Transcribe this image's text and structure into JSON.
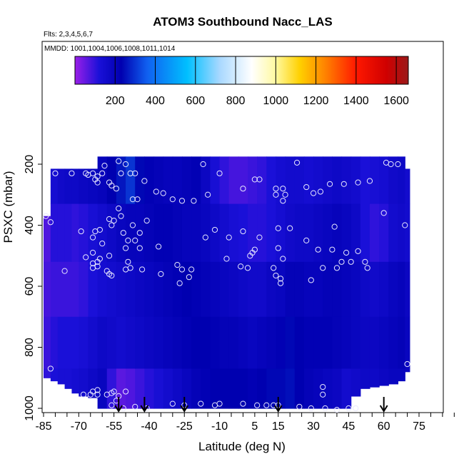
{
  "chart_data": {
    "type": "heatmap",
    "title": "ATOM3 Southbound Nacc_LAS",
    "subtitle_flights": "Flts: 2,3,4,5,6,7",
    "subtitle_dates": "MMDD: 1001,1004,1006,1008,1011,1014",
    "xlabel": "Latitude (deg N)",
    "ylabel": "PSXC (mbar)",
    "xlim": [
      -85,
      90
    ],
    "ylim": [
      1000,
      150
    ],
    "x_ticks": [
      -85,
      -70,
      -55,
      -40,
      -25,
      -10,
      5,
      15,
      30,
      45,
      60,
      75
    ],
    "x_tick_labels": [
      "-85",
      "-70",
      "-55",
      "-40",
      "-25",
      "-10",
      "5",
      "15",
      "30",
      "45",
      "60",
      "75"
    ],
    "y_ticks": [
      200,
      400,
      600,
      800,
      1000
    ],
    "y_tick_labels": [
      "200",
      "400",
      "600",
      "800",
      "1000"
    ],
    "colorbar": {
      "range": [
        0,
        1660
      ],
      "tick_values": [
        200,
        400,
        600,
        800,
        1000,
        1200,
        1400,
        1600
      ],
      "tick_labels": [
        "200",
        "400",
        "600",
        "800",
        "1000",
        "1200",
        "1400",
        "1600"
      ],
      "stops": [
        {
          "v": 0,
          "c": "#9a1fe8"
        },
        {
          "v": 120,
          "c": "#1a10d8"
        },
        {
          "v": 230,
          "c": "#0000b0"
        },
        {
          "v": 360,
          "c": "#1060f0"
        },
        {
          "v": 560,
          "c": "#00c0ff"
        },
        {
          "v": 720,
          "c": "#a8d8ff"
        },
        {
          "v": 880,
          "c": "#ffffff"
        },
        {
          "v": 1000,
          "c": "#fff9a0"
        },
        {
          "v": 1120,
          "c": "#ffd000"
        },
        {
          "v": 1250,
          "c": "#ff8000"
        },
        {
          "v": 1400,
          "c": "#ff1800"
        },
        {
          "v": 1550,
          "c": "#d00000"
        },
        {
          "v": 1660,
          "c": "#9a1a1a"
        }
      ]
    },
    "grid": false,
    "legend": "colorbar top",
    "field_colors": {
      "low": "#8a28ee",
      "mid": "#5a18e0",
      "high": "#2810c8",
      "max": "#0c00a8"
    },
    "field_columns": [
      {
        "x0": -85,
        "x1": -82,
        "top": 370,
        "bottom": 900,
        "vals": [
          60,
          70,
          80,
          90,
          100
        ]
      },
      {
        "x0": -82,
        "x1": -79,
        "top": 215,
        "bottom": 910,
        "vals": [
          140,
          110,
          90,
          110,
          120
        ]
      },
      {
        "x0": -79,
        "x1": -76,
        "top": 215,
        "bottom": 920,
        "vals": [
          160,
          110,
          90,
          120,
          130
        ]
      },
      {
        "x0": -76,
        "x1": -73,
        "top": 215,
        "bottom": 935,
        "vals": [
          170,
          110,
          90,
          120,
          130
        ]
      },
      {
        "x0": -73,
        "x1": -70,
        "top": 215,
        "bottom": 950,
        "vals": [
          170,
          100,
          90,
          120,
          140
        ]
      },
      {
        "x0": -70,
        "x1": -66,
        "top": 215,
        "bottom": 960,
        "vals": [
          180,
          110,
          100,
          130,
          150
        ]
      },
      {
        "x0": -66,
        "x1": -62,
        "top": 215,
        "bottom": 965,
        "vals": [
          190,
          130,
          120,
          150,
          170
        ]
      },
      {
        "x0": -62,
        "x1": -58,
        "top": 175,
        "bottom": 1000,
        "vals": [
          200,
          150,
          140,
          170,
          190
        ]
      },
      {
        "x0": -58,
        "x1": -54,
        "top": 175,
        "bottom": 1000,
        "vals": [
          230,
          170,
          150,
          160,
          100
        ]
      },
      {
        "x0": -54,
        "x1": -50,
        "top": 175,
        "bottom": 1000,
        "vals": [
          260,
          190,
          160,
          150,
          60
        ]
      },
      {
        "x0": -50,
        "x1": -46,
        "top": 175,
        "bottom": 1000,
        "vals": [
          300,
          200,
          170,
          160,
          70
        ]
      },
      {
        "x0": -46,
        "x1": -42,
        "top": 175,
        "bottom": 1000,
        "vals": [
          240,
          200,
          180,
          170,
          90
        ]
      },
      {
        "x0": -42,
        "x1": -38,
        "top": 175,
        "bottom": 1000,
        "vals": [
          220,
          210,
          190,
          180,
          110
        ]
      },
      {
        "x0": -38,
        "x1": -34,
        "top": 175,
        "bottom": 1000,
        "vals": [
          210,
          220,
          200,
          190,
          130
        ]
      },
      {
        "x0": -34,
        "x1": -30,
        "top": 175,
        "bottom": 1000,
        "vals": [
          200,
          220,
          210,
          200,
          150
        ]
      },
      {
        "x0": -30,
        "x1": -26,
        "top": 175,
        "bottom": 1000,
        "vals": [
          200,
          210,
          220,
          210,
          170
        ]
      },
      {
        "x0": -26,
        "x1": -22,
        "top": 175,
        "bottom": 1000,
        "vals": [
          210,
          200,
          230,
          220,
          190
        ]
      },
      {
        "x0": -22,
        "x1": -18,
        "top": 175,
        "bottom": 1000,
        "vals": [
          220,
          200,
          220,
          230,
          210
        ]
      },
      {
        "x0": -18,
        "x1": -14,
        "top": 175,
        "bottom": 1000,
        "vals": [
          180,
          190,
          210,
          230,
          220
        ]
      },
      {
        "x0": -14,
        "x1": -10,
        "top": 175,
        "bottom": 1000,
        "vals": [
          130,
          170,
          200,
          220,
          230
        ]
      },
      {
        "x0": -10,
        "x1": -6,
        "top": 175,
        "bottom": 1000,
        "vals": [
          100,
          150,
          190,
          210,
          230
        ]
      },
      {
        "x0": -6,
        "x1": -2,
        "top": 175,
        "bottom": 1000,
        "vals": [
          80,
          130,
          180,
          210,
          230
        ]
      },
      {
        "x0": -2,
        "x1": 2,
        "top": 175,
        "bottom": 1000,
        "vals": [
          80,
          120,
          170,
          200,
          230
        ]
      },
      {
        "x0": 2,
        "x1": 6,
        "top": 175,
        "bottom": 1000,
        "vals": [
          90,
          110,
          160,
          190,
          220
        ]
      },
      {
        "x0": 6,
        "x1": 10,
        "top": 175,
        "bottom": 1000,
        "vals": [
          100,
          110,
          160,
          200,
          230
        ]
      },
      {
        "x0": 10,
        "x1": 14,
        "top": 175,
        "bottom": 1000,
        "vals": [
          120,
          120,
          180,
          210,
          240
        ]
      },
      {
        "x0": 14,
        "x1": 18,
        "top": 175,
        "bottom": 1000,
        "vals": [
          140,
          140,
          190,
          220,
          240
        ]
      },
      {
        "x0": 18,
        "x1": 22,
        "top": 175,
        "bottom": 1000,
        "vals": [
          150,
          160,
          210,
          240,
          250
        ]
      },
      {
        "x0": 22,
        "x1": 26,
        "top": 175,
        "bottom": 1000,
        "vals": [
          150,
          170,
          210,
          230,
          230
        ]
      },
      {
        "x0": 26,
        "x1": 30,
        "top": 175,
        "bottom": 1000,
        "vals": [
          140,
          170,
          200,
          220,
          210
        ]
      },
      {
        "x0": 30,
        "x1": 34,
        "top": 175,
        "bottom": 1000,
        "vals": [
          150,
          180,
          200,
          220,
          200
        ]
      },
      {
        "x0": 34,
        "x1": 38,
        "top": 175,
        "bottom": 1000,
        "vals": [
          160,
          190,
          210,
          220,
          190
        ]
      },
      {
        "x0": 38,
        "x1": 42,
        "top": 175,
        "bottom": 1000,
        "vals": [
          170,
          200,
          210,
          210,
          180
        ]
      },
      {
        "x0": 42,
        "x1": 46,
        "top": 175,
        "bottom": 1000,
        "vals": [
          160,
          190,
          200,
          200,
          150
        ]
      },
      {
        "x0": 46,
        "x1": 50,
        "top": 175,
        "bottom": 960,
        "vals": [
          150,
          170,
          190,
          190,
          160
        ]
      },
      {
        "x0": 50,
        "x1": 54,
        "top": 175,
        "bottom": 935,
        "vals": [
          120,
          120,
          170,
          180,
          170
        ]
      },
      {
        "x0": 54,
        "x1": 58,
        "top": 175,
        "bottom": 930,
        "vals": [
          130,
          100,
          160,
          180,
          170
        ]
      },
      {
        "x0": 58,
        "x1": 62,
        "top": 175,
        "bottom": 925,
        "vals": [
          140,
          110,
          170,
          190,
          180
        ]
      },
      {
        "x0": 62,
        "x1": 66,
        "top": 175,
        "bottom": 920,
        "vals": [
          160,
          150,
          190,
          200,
          190
        ]
      },
      {
        "x0": 66,
        "x1": 69,
        "top": 175,
        "bottom": 910,
        "vals": [
          170,
          160,
          200,
          210,
          190
        ]
      },
      {
        "x0": 69,
        "x1": 71,
        "top": 215,
        "bottom": 880,
        "vals": [
          150,
          150,
          180,
          190,
          180
        ]
      }
    ],
    "observations": [
      {
        "lat": -80,
        "p": 230
      },
      {
        "lat": -73,
        "p": 230
      },
      {
        "lat": -67,
        "p": 230
      },
      {
        "lat": -66,
        "p": 235
      },
      {
        "lat": -64,
        "p": 230
      },
      {
        "lat": -63,
        "p": 250
      },
      {
        "lat": -62,
        "p": 260
      },
      {
        "lat": -62,
        "p": 240
      },
      {
        "lat": -60,
        "p": 230
      },
      {
        "lat": -59,
        "p": 205
      },
      {
        "lat": -57,
        "p": 260
      },
      {
        "lat": -56,
        "p": 270
      },
      {
        "lat": -54,
        "p": 280
      },
      {
        "lat": -53,
        "p": 190
      },
      {
        "lat": -52,
        "p": 230
      },
      {
        "lat": -50,
        "p": 200
      },
      {
        "lat": -48,
        "p": 230
      },
      {
        "lat": -46,
        "p": 230
      },
      {
        "lat": -42,
        "p": 255
      },
      {
        "lat": -37,
        "p": 290
      },
      {
        "lat": -34,
        "p": 295
      },
      {
        "lat": -30,
        "p": 315
      },
      {
        "lat": -45,
        "p": 315
      },
      {
        "lat": -47,
        "p": 315
      },
      {
        "lat": -53,
        "p": 345
      },
      {
        "lat": -52,
        "p": 370
      },
      {
        "lat": -55,
        "p": 385
      },
      {
        "lat": -57,
        "p": 380
      },
      {
        "lat": -56,
        "p": 400
      },
      {
        "lat": -47,
        "p": 400
      },
      {
        "lat": -41,
        "p": 385
      },
      {
        "lat": -44,
        "p": 425
      },
      {
        "lat": -51,
        "p": 425
      },
      {
        "lat": -49,
        "p": 450
      },
      {
        "lat": -46,
        "p": 450
      },
      {
        "lat": -44,
        "p": 475
      },
      {
        "lat": -36,
        "p": 470
      },
      {
        "lat": -50,
        "p": 475
      },
      {
        "lat": -61,
        "p": 415
      },
      {
        "lat": -63,
        "p": 420
      },
      {
        "lat": -64,
        "p": 440
      },
      {
        "lat": -60,
        "p": 460
      },
      {
        "lat": -84,
        "p": 370
      },
      {
        "lat": -82,
        "p": 390
      },
      {
        "lat": -69,
        "p": 420
      },
      {
        "lat": -64,
        "p": 490
      },
      {
        "lat": -61,
        "p": 510
      },
      {
        "lat": -67,
        "p": 505
      },
      {
        "lat": -64,
        "p": 525
      },
      {
        "lat": -62,
        "p": 520
      },
      {
        "lat": -62,
        "p": 535
      },
      {
        "lat": -64,
        "p": 540
      },
      {
        "lat": -58,
        "p": 550
      },
      {
        "lat": -57,
        "p": 560
      },
      {
        "lat": -56,
        "p": 565
      },
      {
        "lat": -57,
        "p": 500
      },
      {
        "lat": -49,
        "p": 520
      },
      {
        "lat": -48,
        "p": 540
      },
      {
        "lat": -50,
        "p": 545
      },
      {
        "lat": -43,
        "p": 545
      },
      {
        "lat": -35,
        "p": 560
      },
      {
        "lat": -28,
        "p": 530
      },
      {
        "lat": -23,
        "p": 570
      },
      {
        "lat": -26,
        "p": 545
      },
      {
        "lat": -22,
        "p": 545
      },
      {
        "lat": -27,
        "p": 590
      },
      {
        "lat": -76,
        "p": 550
      },
      {
        "lat": -82,
        "p": 870
      },
      {
        "lat": -26,
        "p": 320
      },
      {
        "lat": -21,
        "p": 320
      },
      {
        "lat": -15,
        "p": 300
      },
      {
        "lat": -17,
        "p": 200
      },
      {
        "lat": -10,
        "p": 230
      },
      {
        "lat": -12,
        "p": 415
      },
      {
        "lat": -16,
        "p": 440
      },
      {
        "lat": -6,
        "p": 440
      },
      {
        "lat": -7,
        "p": 510
      },
      {
        "lat": 0,
        "p": 280
      },
      {
        "lat": 5,
        "p": 250
      },
      {
        "lat": 7,
        "p": 250
      },
      {
        "lat": 0,
        "p": 420
      },
      {
        "lat": 3,
        "p": 500
      },
      {
        "lat": 4,
        "p": 490
      },
      {
        "lat": 5,
        "p": 480
      },
      {
        "lat": 7,
        "p": 440
      },
      {
        "lat": 2,
        "p": 540
      },
      {
        "lat": -1,
        "p": 535
      },
      {
        "lat": 14,
        "p": 280
      },
      {
        "lat": 17,
        "p": 280
      },
      {
        "lat": 14,
        "p": 300
      },
      {
        "lat": 17,
        "p": 320
      },
      {
        "lat": 18,
        "p": 300
      },
      {
        "lat": 15,
        "p": 410
      },
      {
        "lat": 20,
        "p": 410
      },
      {
        "lat": 15,
        "p": 475
      },
      {
        "lat": 17,
        "p": 510
      },
      {
        "lat": 13,
        "p": 540
      },
      {
        "lat": 14,
        "p": 565
      },
      {
        "lat": 16,
        "p": 590
      },
      {
        "lat": 16,
        "p": 575
      },
      {
        "lat": 23,
        "p": 195
      },
      {
        "lat": 27,
        "p": 275
      },
      {
        "lat": 30,
        "p": 295
      },
      {
        "lat": 33,
        "p": 290
      },
      {
        "lat": 37,
        "p": 265
      },
      {
        "lat": 43,
        "p": 265
      },
      {
        "lat": 49,
        "p": 260
      },
      {
        "lat": 54,
        "p": 255
      },
      {
        "lat": 60,
        "p": 360
      },
      {
        "lat": 63,
        "p": 200
      },
      {
        "lat": 66,
        "p": 200
      },
      {
        "lat": 69,
        "p": 400
      },
      {
        "lat": 27,
        "p": 450
      },
      {
        "lat": 32,
        "p": 480
      },
      {
        "lat": 38,
        "p": 480
      },
      {
        "lat": 34,
        "p": 540
      },
      {
        "lat": 40,
        "p": 540
      },
      {
        "lat": 42,
        "p": 520
      },
      {
        "lat": 46,
        "p": 520
      },
      {
        "lat": 44,
        "p": 490
      },
      {
        "lat": 52,
        "p": 520
      },
      {
        "lat": 53,
        "p": 540
      },
      {
        "lat": 29,
        "p": 580
      },
      {
        "lat": 34,
        "p": 930
      },
      {
        "lat": 34,
        "p": 955
      },
      {
        "lat": 29,
        "p": 1000
      },
      {
        "lat": 35,
        "p": 1000
      },
      {
        "lat": 40,
        "p": 1005
      },
      {
        "lat": 45,
        "p": 1000
      },
      {
        "lat": 48,
        "p": 1000
      },
      {
        "lat": 24,
        "p": 995
      },
      {
        "lat": 15,
        "p": 990
      },
      {
        "lat": 13,
        "p": 990
      },
      {
        "lat": 10,
        "p": 990
      },
      {
        "lat": 6,
        "p": 990
      },
      {
        "lat": 0,
        "p": 985
      },
      {
        "lat": -10,
        "p": 985
      },
      {
        "lat": -12,
        "p": 990
      },
      {
        "lat": -18,
        "p": 985
      },
      {
        "lat": -25,
        "p": 990
      },
      {
        "lat": -30,
        "p": 985
      },
      {
        "lat": -41,
        "p": 1000
      },
      {
        "lat": -46,
        "p": 995
      },
      {
        "lat": -51,
        "p": 1000
      },
      {
        "lat": -53,
        "p": 960
      },
      {
        "lat": -56,
        "p": 950
      },
      {
        "lat": -58,
        "p": 955
      },
      {
        "lat": -55,
        "p": 945
      },
      {
        "lat": -50,
        "p": 945
      },
      {
        "lat": -62,
        "p": 940
      },
      {
        "lat": -64,
        "p": 945
      },
      {
        "lat": -65,
        "p": 955
      },
      {
        "lat": -62,
        "p": 955
      },
      {
        "lat": -68,
        "p": 955
      },
      {
        "lat": -54,
        "p": 975
      },
      {
        "lat": -56,
        "p": 990
      },
      {
        "lat": 70,
        "p": 855
      },
      {
        "lat": 61,
        "p": 195
      },
      {
        "lat": 39,
        "p": 405
      },
      {
        "lat": 49,
        "p": 485
      }
    ],
    "arrows_lat": [
      -53,
      -42,
      -25,
      15,
      60
    ]
  }
}
